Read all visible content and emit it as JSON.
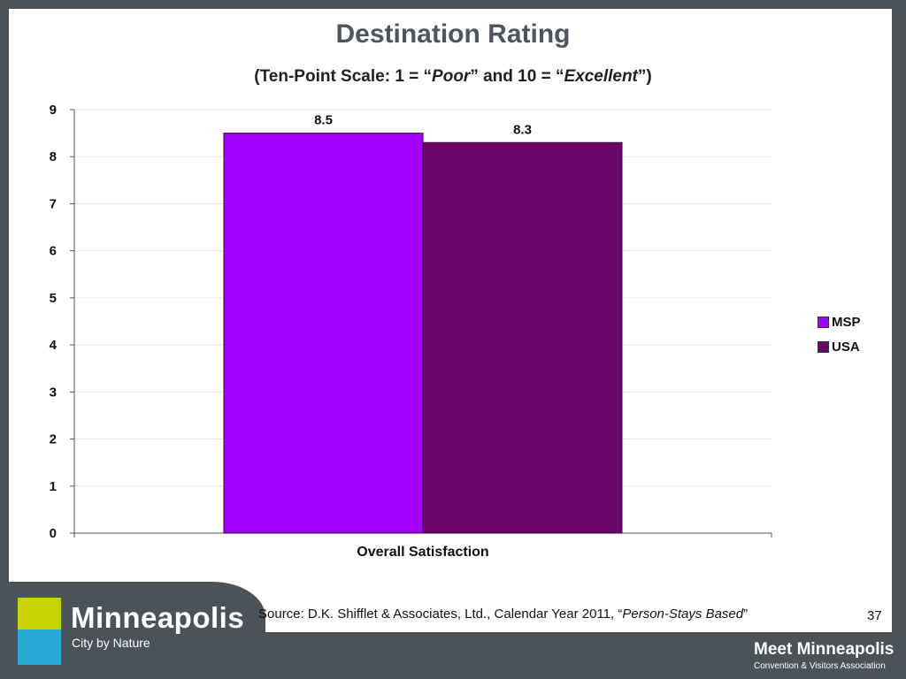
{
  "title": "Destination Rating",
  "subtitle": {
    "part1": "(Ten-Point Scale: 1 = “",
    "poor": "Poor",
    "part2": "” and 10 = “",
    "excellent": "Excellent",
    "part3": "”)"
  },
  "chart_data": {
    "type": "bar",
    "categories": [
      "Overall Satisfaction"
    ],
    "series": [
      {
        "name": "MSP",
        "values": [
          8.5
        ],
        "color": "#a200ff"
      },
      {
        "name": "USA",
        "values": [
          8.3
        ],
        "color": "#6b0569"
      }
    ],
    "ylim": [
      0,
      9
    ],
    "yticks": [
      "0",
      "1",
      "2",
      "3",
      "4",
      "5",
      "6",
      "7",
      "8",
      "9"
    ],
    "data_labels": [
      "8.5",
      "8.3"
    ],
    "grid": true,
    "legend": "right"
  },
  "footer": {
    "source_prefix": "Source: D.K. Shifflet & Associates, Ltd., Calendar Year 2011, “",
    "source_italic": "Person-Stays Based",
    "source_suffix": "”",
    "page_number": "37",
    "logo_name": "Minneapolis",
    "logo_tagline": "City by Nature",
    "brand_name": "Meet Minneapolis",
    "brand_sub": "Convention & Visitors Association"
  }
}
